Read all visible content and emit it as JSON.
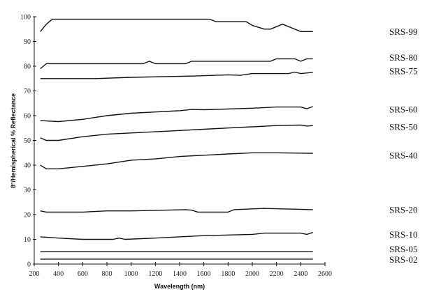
{
  "chart_data": {
    "type": "line",
    "title": "",
    "xlabel": "Wavelength (nm)",
    "ylabel": "8°/Hemispherical % Reflectance",
    "xlim": [
      200,
      2600
    ],
    "ylim": [
      0,
      100
    ],
    "xticks": [
      200,
      400,
      600,
      800,
      1000,
      1200,
      1400,
      1600,
      1800,
      2000,
      2200,
      2400,
      2600
    ],
    "yticks": [
      0,
      10,
      20,
      30,
      40,
      50,
      60,
      70,
      80,
      90,
      100
    ],
    "grid": false,
    "legend": "right (labels at line ends)",
    "line_color": "#111111",
    "series": [
      {
        "name": "SRS-99",
        "x": [
          250,
          300,
          350,
          400,
          1000,
          1650,
          1700,
          1950,
          2000,
          2100,
          2150,
          2250,
          2350,
          2400,
          2500
        ],
        "y": [
          94,
          97,
          99,
          99,
          99,
          99,
          98,
          98,
          96.5,
          95,
          95,
          97,
          95,
          94,
          94
        ],
        "label_y": 94
      },
      {
        "name": "SRS-80",
        "x": [
          250,
          300,
          350,
          1100,
          1150,
          1200,
          1450,
          1500,
          2150,
          2200,
          2350,
          2400,
          2450,
          2500
        ],
        "y": [
          79,
          81,
          81,
          81,
          82,
          81,
          81,
          82,
          82,
          83,
          83,
          82,
          83,
          83
        ],
        "label_y": 83.5
      },
      {
        "name": "SRS-75",
        "x": [
          250,
          700,
          1000,
          1500,
          1800,
          1900,
          2000,
          2300,
          2350,
          2400,
          2500
        ],
        "y": [
          75,
          75,
          75.5,
          76,
          76.5,
          76.3,
          77,
          77,
          77.6,
          77,
          77.5
        ],
        "label_y": 78
      },
      {
        "name": "SRS-60",
        "x": [
          250,
          400,
          600,
          800,
          1000,
          1200,
          1400,
          1500,
          1600,
          2000,
          2200,
          2400,
          2450,
          2500
        ],
        "y": [
          58,
          57.6,
          58.5,
          60,
          61,
          61.5,
          62,
          62.5,
          62.4,
          63,
          63.5,
          63.5,
          62.8,
          63.7
        ],
        "label_y": 62.5
      },
      {
        "name": "SRS-50",
        "x": [
          250,
          300,
          400,
          600,
          800,
          1000,
          1200,
          1400,
          1600,
          1800,
          2000,
          2200,
          2400,
          2450,
          2500
        ],
        "y": [
          51,
          50,
          50,
          51.5,
          52.5,
          53,
          53.5,
          54,
          54.5,
          55,
          55.5,
          56,
          56.2,
          55.8,
          56
        ],
        "label_y": 55.5
      },
      {
        "name": "SRS-40",
        "x": [
          250,
          300,
          400,
          600,
          800,
          1000,
          1200,
          1400,
          1600,
          1800,
          2000,
          2200,
          2500
        ],
        "y": [
          40,
          38.5,
          38.5,
          39.5,
          40.5,
          42,
          42.5,
          43.5,
          44,
          44.5,
          45,
          45,
          44.8
        ],
        "label_y": 44
      },
      {
        "name": "SRS-20",
        "x": [
          250,
          300,
          600,
          800,
          1000,
          1450,
          1500,
          1550,
          1800,
          1850,
          2100,
          2500
        ],
        "y": [
          21.5,
          21,
          21,
          21.5,
          21.5,
          22,
          21.8,
          21,
          21,
          22,
          22.5,
          22
        ],
        "label_y": 22
      },
      {
        "name": "SRS-10",
        "x": [
          250,
          400,
          600,
          850,
          900,
          950,
          1200,
          1600,
          2000,
          2100,
          2400,
          2450,
          2500
        ],
        "y": [
          11,
          10.5,
          10,
          10,
          10.5,
          10,
          10.5,
          11.5,
          12,
          12.5,
          12.5,
          12,
          12.8
        ],
        "label_y": 12
      },
      {
        "name": "SRS-05",
        "x": [
          250,
          2500
        ],
        "y": [
          5,
          5
        ],
        "label_y": 6
      },
      {
        "name": "SRS-02",
        "x": [
          250,
          2500
        ],
        "y": [
          2,
          2
        ],
        "label_y": 2
      }
    ]
  }
}
